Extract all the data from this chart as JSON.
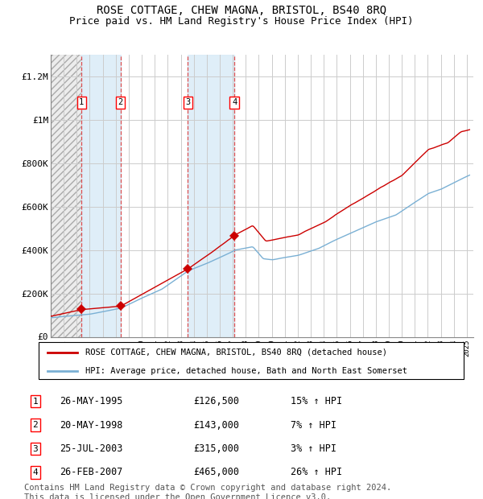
{
  "title": "ROSE COTTAGE, CHEW MAGNA, BRISTOL, BS40 8RQ",
  "subtitle": "Price paid vs. HM Land Registry's House Price Index (HPI)",
  "title_fontsize": 10,
  "subtitle_fontsize": 9,
  "ylim": [
    0,
    1300000
  ],
  "yticks": [
    0,
    200000,
    400000,
    600000,
    800000,
    1000000,
    1200000
  ],
  "ytick_labels": [
    "£0",
    "£200K",
    "£400K",
    "£600K",
    "£800K",
    "£1M",
    "£1.2M"
  ],
  "hpi_color": "#7ab0d4",
  "price_color": "#cc0000",
  "marker_color": "#cc0000",
  "grid_color": "#cccccc",
  "sale_date_nums": [
    1995.37,
    1998.37,
    2003.54,
    2007.12
  ],
  "sale_prices": [
    126500,
    143000,
    315000,
    465000
  ],
  "sale_labels": [
    "1",
    "2",
    "3",
    "4"
  ],
  "sale_label_hpi_pct": [
    "15%",
    "7%",
    "3%",
    "26%"
  ],
  "sale_label_dates_display": [
    "26-MAY-1995",
    "20-MAY-1998",
    "25-JUL-2003",
    "26-FEB-2007"
  ],
  "sale_prices_display": [
    "£126,500",
    "£143,000",
    "£315,000",
    "£465,000"
  ],
  "legend_label_red": "ROSE COTTAGE, CHEW MAGNA, BRISTOL, BS40 8RQ (detached house)",
  "legend_label_blue": "HPI: Average price, detached house, Bath and North East Somerset",
  "footer_text": "Contains HM Land Registry data © Crown copyright and database right 2024.\nThis data is licensed under the Open Government Licence v3.0.",
  "footer_fontsize": 7.5,
  "hpi_waypoints_x": [
    1993.0,
    1995.0,
    1996.0,
    1998.37,
    2000.0,
    2001.5,
    2003.54,
    2005.0,
    2007.0,
    2007.12,
    2008.5,
    2009.3,
    2010.0,
    2012.0,
    2013.5,
    2015.0,
    2016.5,
    2018.0,
    2019.5,
    2021.0,
    2022.0,
    2023.0,
    2024.0,
    2025.2
  ],
  "hpi_waypoints_y": [
    88000,
    100000,
    105000,
    133000,
    180000,
    220000,
    305000,
    340000,
    395000,
    400000,
    415000,
    360000,
    355000,
    375000,
    405000,
    450000,
    490000,
    530000,
    560000,
    620000,
    660000,
    680000,
    710000,
    745000
  ],
  "red_waypoints_x": [
    1993.0,
    1995.37,
    1998.37,
    2003.54,
    2007.12,
    2008.5,
    2009.5,
    2012.0,
    2014.0,
    2016.0,
    2018.0,
    2020.0,
    2022.0,
    2023.5,
    2024.5,
    2025.2
  ],
  "red_waypoints_y": [
    95000,
    126500,
    143000,
    315000,
    465000,
    510000,
    440000,
    470000,
    530000,
    610000,
    680000,
    750000,
    870000,
    900000,
    950000,
    960000
  ]
}
